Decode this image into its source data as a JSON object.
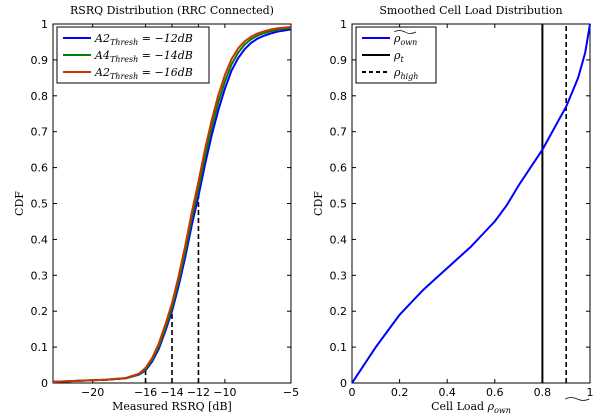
{
  "chart_data": [
    {
      "type": "line",
      "title": "RSRQ Distribution (RRC Connected)",
      "xlabel": "Measured RSRQ [dB]",
      "ylabel": "CDF",
      "xlim": [
        -23,
        -5
      ],
      "ylim": [
        0,
        1
      ],
      "xticks": [
        -20,
        -16,
        -14,
        -12,
        -10,
        -5
      ],
      "xtick_labels": [
        "−20",
        "−16",
        "−14",
        "−12",
        "−10",
        "−5"
      ],
      "yticks": [
        0,
        0.1,
        0.2,
        0.3,
        0.4,
        0.5,
        0.6,
        0.7,
        0.8,
        0.9,
        1
      ],
      "ytick_labels": [
        "0",
        "0.1",
        "0.2",
        "0.3",
        "0.4",
        "0.5",
        "0.6",
        "0.7",
        "0.8",
        "0.9",
        "1"
      ],
      "grid": false,
      "legend_position": "top-left",
      "series": [
        {
          "name": "A2Thresh = −12dB",
          "legend_main": "A2",
          "legend_sub": "Thresh",
          "legend_rest": " = −12dB",
          "color": "#0000ff",
          "x": [
            -23,
            -21,
            -19,
            -17.5,
            -16.5,
            -16,
            -15.5,
            -15,
            -14.5,
            -14,
            -13.5,
            -13,
            -12.5,
            -12,
            -11.5,
            -11,
            -10.5,
            -10,
            -9.5,
            -9,
            -8.5,
            -8,
            -7.5,
            -7,
            -6.5,
            -6,
            -5.5,
            -5
          ],
          "y": [
            0.003,
            0.006,
            0.009,
            0.013,
            0.023,
            0.035,
            0.06,
            0.095,
            0.145,
            0.2,
            0.27,
            0.35,
            0.44,
            0.52,
            0.61,
            0.69,
            0.76,
            0.82,
            0.87,
            0.905,
            0.93,
            0.948,
            0.96,
            0.968,
            0.974,
            0.979,
            0.982,
            0.985
          ]
        },
        {
          "name": "A4Thresh = −14dB",
          "legend_main": "A4",
          "legend_sub": "Thresh",
          "legend_rest": " = −14dB",
          "color": "#008000",
          "x": [
            -23,
            -21,
            -19,
            -17.5,
            -16.5,
            -16,
            -15.5,
            -15,
            -14.5,
            -14,
            -13.5,
            -13,
            -12.5,
            -12,
            -11.5,
            -11,
            -10.5,
            -10,
            -9.5,
            -9,
            -8.5,
            -8,
            -7.5,
            -7,
            -6.5,
            -6,
            -5.5,
            -5
          ],
          "y": [
            0.003,
            0.006,
            0.009,
            0.013,
            0.024,
            0.038,
            0.065,
            0.102,
            0.153,
            0.21,
            0.283,
            0.366,
            0.458,
            0.54,
            0.632,
            0.712,
            0.782,
            0.84,
            0.887,
            0.92,
            0.943,
            0.958,
            0.968,
            0.975,
            0.98,
            0.984,
            0.987,
            0.989
          ]
        },
        {
          "name": "A2Thresh = −16dB",
          "legend_main": "A2",
          "legend_sub": "Thresh",
          "legend_rest": " = −16dB",
          "color": "#cc3300",
          "x": [
            -23,
            -21,
            -19,
            -17.5,
            -16.5,
            -16,
            -15.5,
            -15,
            -14.5,
            -14,
            -13.5,
            -13,
            -12.5,
            -12,
            -11.5,
            -11,
            -10.5,
            -10,
            -9.5,
            -9,
            -8.5,
            -8,
            -7.5,
            -7,
            -6.5,
            -6,
            -5.5,
            -5
          ],
          "y": [
            0.003,
            0.006,
            0.009,
            0.014,
            0.026,
            0.042,
            0.07,
            0.11,
            0.163,
            0.222,
            0.297,
            0.382,
            0.475,
            0.56,
            0.652,
            0.732,
            0.802,
            0.858,
            0.902,
            0.932,
            0.952,
            0.965,
            0.974,
            0.98,
            0.985,
            0.988,
            0.99,
            0.992
          ]
        }
      ],
      "vlines": [
        -16,
        -14,
        -12
      ]
    },
    {
      "type": "line",
      "title": "Smoothed Cell Load Distribution",
      "xlabel_main": "Cell Load ",
      "xlabel_symbol": "ρ",
      "xlabel_sub": "own",
      "ylabel": "CDF",
      "xlim": [
        0,
        1
      ],
      "ylim": [
        0,
        1
      ],
      "xticks": [
        0,
        0.2,
        0.4,
        0.6,
        0.8,
        1
      ],
      "xtick_labels": [
        "0",
        "0.2",
        "0.4",
        "0.6",
        "0.8",
        "1"
      ],
      "yticks": [
        0,
        0.1,
        0.2,
        0.3,
        0.4,
        0.5,
        0.6,
        0.7,
        0.8,
        0.9,
        1
      ],
      "ytick_labels": [
        "0",
        "0.1",
        "0.2",
        "0.3",
        "0.4",
        "0.5",
        "0.6",
        "0.7",
        "0.8",
        "0.9",
        "1"
      ],
      "grid": false,
      "legend_position": "top-left",
      "series": [
        {
          "name": "ρown (smoothed)",
          "legend_symbol": "ρ",
          "legend_sub": "own",
          "color": "#0000ff",
          "x": [
            0,
            0.02,
            0.05,
            0.1,
            0.15,
            0.2,
            0.25,
            0.3,
            0.35,
            0.4,
            0.45,
            0.5,
            0.55,
            0.6,
            0.65,
            0.7,
            0.75,
            0.8,
            0.85,
            0.9,
            0.95,
            0.98,
            1.0
          ],
          "y": [
            0,
            0.02,
            0.05,
            0.1,
            0.145,
            0.19,
            0.225,
            0.26,
            0.29,
            0.32,
            0.35,
            0.38,
            0.415,
            0.45,
            0.495,
            0.55,
            0.6,
            0.65,
            0.71,
            0.77,
            0.85,
            0.92,
            1.0
          ]
        }
      ],
      "vline_solid": {
        "x": 0.8,
        "legend_symbol": "ρ",
        "legend_sub": "t",
        "color": "#000000"
      },
      "vline_dashed": {
        "x": 0.9,
        "legend_symbol": "ρ",
        "legend_sub": "high",
        "color": "#000000"
      }
    }
  ]
}
